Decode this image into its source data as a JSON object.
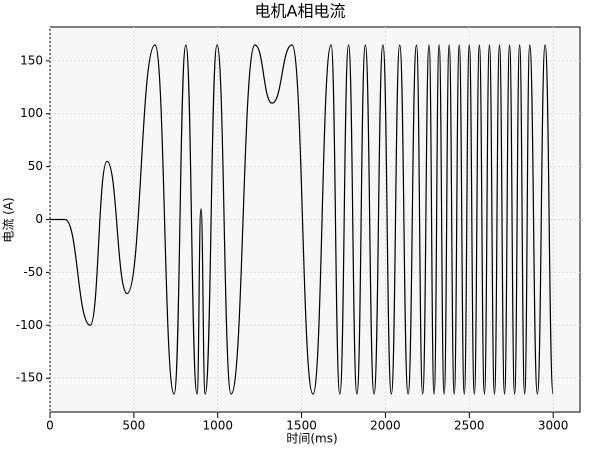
{
  "chart_data": {
    "type": "line",
    "title": "电机A相电流",
    "x_label": "时间(ms)",
    "y_label": "电流 (A)",
    "x": [
      0,
      90,
      240,
      340,
      460,
      626,
      740,
      810,
      877,
      900,
      925,
      996,
      1080,
      1222,
      1324,
      1443,
      1568,
      1676,
      1728,
      1780,
      1830,
      1880,
      1932,
      1985,
      2035,
      2085,
      2135,
      2185,
      2222,
      2260,
      2290,
      2320,
      2350,
      2380,
      2410,
      2440,
      2470,
      2500,
      2530,
      2560,
      2590,
      2620,
      2650,
      2680,
      2710,
      2740,
      2770,
      2800,
      2830,
      2860,
      2906,
      2952,
      3000
    ],
    "series": [
      {
        "color": "#000000",
        "values": [
          0,
          0,
          -100,
          55,
          -70,
          165,
          -165,
          165,
          -165,
          10,
          -165,
          165,
          -165,
          165,
          110,
          165,
          -165,
          165,
          -165,
          165,
          -165,
          165,
          -165,
          165,
          -165,
          165,
          -165,
          165,
          -165,
          165,
          -165,
          165,
          -165,
          165,
          -165,
          165,
          -165,
          165,
          -165,
          165,
          -165,
          165,
          -165,
          165,
          -165,
          165,
          -165,
          165,
          -165,
          165,
          -165,
          165,
          -165
        ]
      }
    ],
    "xlim": [
      0,
      3160
    ],
    "ylim": [
      -182,
      182
    ],
    "xticks": [
      0,
      500,
      1000,
      1500,
      2000,
      2500,
      3000
    ],
    "yticks": [
      -150,
      -100,
      -50,
      0,
      50,
      100,
      150
    ],
    "grid": true
  }
}
